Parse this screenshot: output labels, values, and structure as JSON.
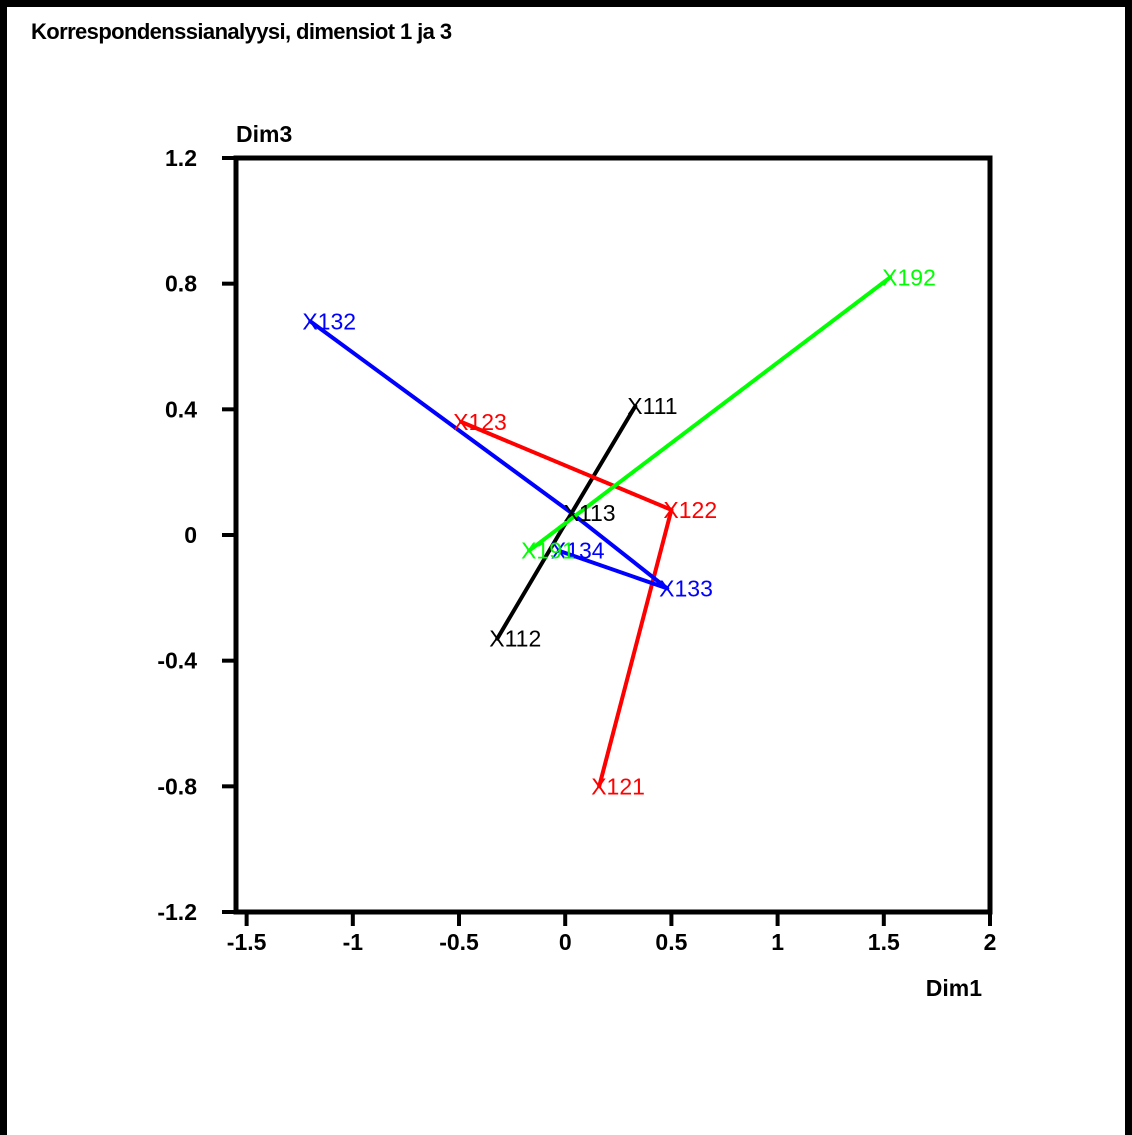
{
  "chart_data": {
    "type": "scatter",
    "title": "Korrespondenssianalyysi, dimensiot 1 ja 3",
    "xlabel": "Dim1",
    "ylabel": "Dim3",
    "xlim": [
      -1.55,
      2.0
    ],
    "ylim": [
      -1.2,
      1.2
    ],
    "xticks": [
      -1.5,
      -1,
      -0.5,
      0,
      0.5,
      1,
      1.5,
      2
    ],
    "xtick_labels": [
      "-1.5",
      "-1",
      "-0.5",
      "0",
      "0.5",
      "1",
      "1.5",
      "2"
    ],
    "yticks": [
      1.2,
      0.8,
      0.4,
      0,
      -0.4,
      -0.8,
      -1.2
    ],
    "ytick_labels": [
      "1.2",
      "0.8",
      "0.4",
      "0",
      "-0.4",
      "-0.8",
      "-1.2"
    ],
    "grid": false,
    "series": [
      {
        "color": "#000000",
        "points": [
          {
            "label": "X112",
            "x": -0.32,
            "y": -0.33
          },
          {
            "label": "X113",
            "x": 0.03,
            "y": 0.07
          },
          {
            "label": "X111",
            "x": 0.33,
            "y": 0.41
          }
        ]
      },
      {
        "color": "#ff0000",
        "points": [
          {
            "label": "X123",
            "x": -0.49,
            "y": 0.36
          },
          {
            "label": "X122",
            "x": 0.5,
            "y": 0.08
          },
          {
            "label": "X121",
            "x": 0.16,
            "y": -0.8
          }
        ]
      },
      {
        "color": "#0000ff",
        "points": [
          {
            "label": "X132",
            "x": -1.2,
            "y": 0.68
          },
          {
            "label": "X134",
            "x": -0.03,
            "y": -0.05
          },
          {
            "label": "X133",
            "x": 0.48,
            "y": -0.17
          }
        ]
      },
      {
        "color": "#00ff00",
        "points": [
          {
            "label": "X191",
            "x": -0.17,
            "y": -0.05
          },
          {
            "label": "X192",
            "x": 1.53,
            "y": 0.82
          }
        ]
      }
    ],
    "segments": [
      {
        "color": "#000000",
        "from": "X112",
        "to": "X113"
      },
      {
        "color": "#000000",
        "from": "X113",
        "to": "X111"
      },
      {
        "color": "#ff0000",
        "from": "X123",
        "to": "X122"
      },
      {
        "color": "#ff0000",
        "from": "X122",
        "to": "X121"
      },
      {
        "color": "#0000ff",
        "from": "X132",
        "to": "X113"
      },
      {
        "color": "#0000ff",
        "from": "X113",
        "to": "X133"
      },
      {
        "color": "#0000ff",
        "from": "X133",
        "to": "X134"
      },
      {
        "color": "#00ff00",
        "from": "X191",
        "to": "X192"
      }
    ]
  }
}
